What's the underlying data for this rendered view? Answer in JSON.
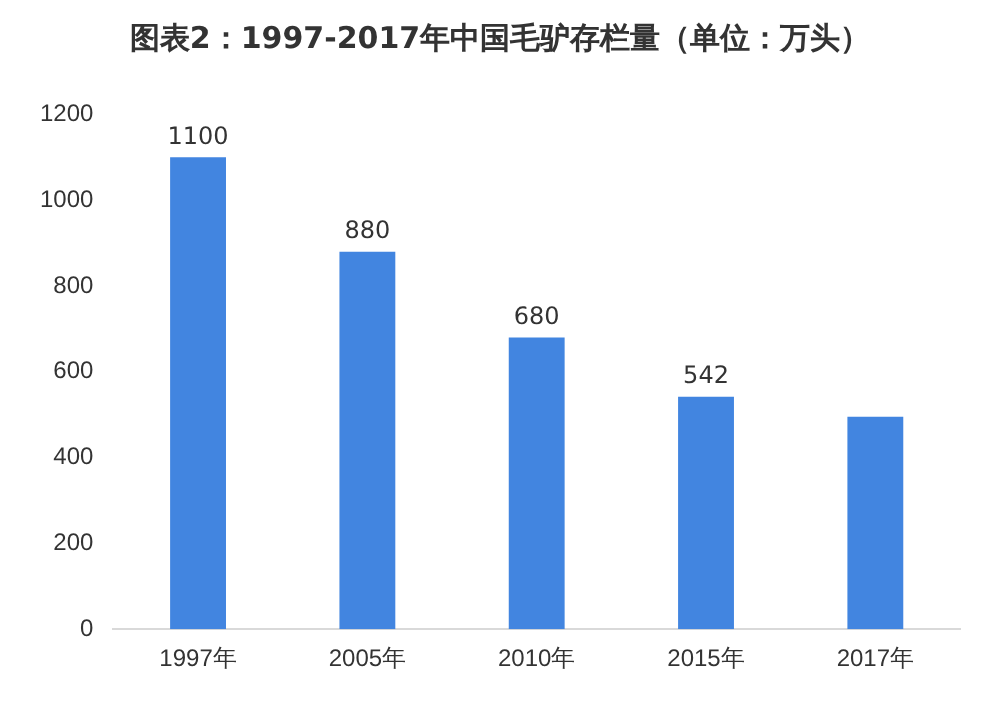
{
  "chart_data": {
    "type": "bar",
    "title": "图表2：1997-2017年中国毛驴存栏量（单位：万头）",
    "categories": [
      "1997年",
      "2005年",
      "2010年",
      "2015年",
      "2017年"
    ],
    "values": [
      1100,
      880,
      680,
      542,
      495
    ],
    "value_labels": [
      "1100",
      "880",
      "680",
      "542",
      null
    ],
    "color": "#4285e0",
    "ylim": [
      0,
      1200
    ],
    "yticks": [
      0,
      200,
      400,
      600,
      800,
      1000,
      1200
    ],
    "grid": false,
    "legend": false
  }
}
